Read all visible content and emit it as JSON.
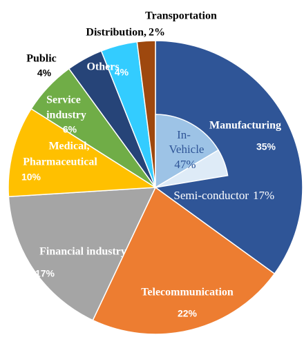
{
  "chart_data": {
    "type": "pie",
    "categories": [
      [
        "Manufacturing"
      ],
      [
        "Telecommunication"
      ],
      [
        "Financial industry"
      ],
      [
        "Medical,",
        "Pharmaceutical"
      ],
      [
        "Service",
        "industry"
      ],
      [
        "Public"
      ],
      [
        "Others"
      ],
      [
        "Transportation",
        "Distribution,"
      ]
    ],
    "values": [
      35,
      22,
      17,
      10,
      6,
      4,
      4,
      2
    ],
    "value_labels": [
      "35%",
      "22%",
      "17%",
      "10%",
      "6%",
      "4%",
      "4%",
      "2%"
    ],
    "colors": [
      "#2f5597",
      "#ed7d31",
      "#a5a5a5",
      "#ffc000",
      "#70ad47",
      "#264478",
      "#33ccff",
      "#9e480e"
    ],
    "breakdown": {
      "parent": 0,
      "categories": [
        [
          "In-",
          "Vehicle"
        ],
        [
          "Semi-conductor"
        ]
      ],
      "values": [
        47,
        17
      ],
      "value_labels": [
        "47%",
        "17%"
      ],
      "colors": [
        "#9dc3e6",
        "#deebf7"
      ]
    }
  }
}
